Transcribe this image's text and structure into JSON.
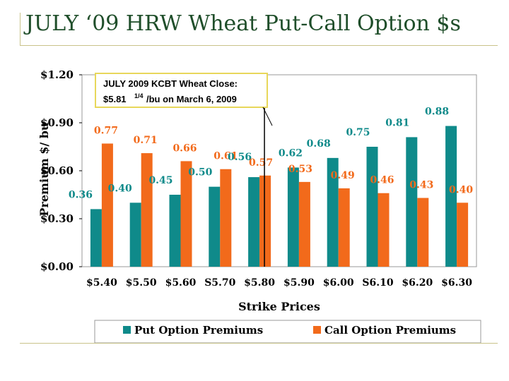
{
  "slide": {
    "title": "JULY ‘09 HRW Wheat Put-Call Option $s"
  },
  "annotation": {
    "line1": "JULY 2009 KCBT Wheat Close:",
    "line2_pre": "$5.81",
    "line2_sup": "1/4",
    "line2_post": "/bu on March 6, 2009"
  },
  "colors": {
    "put": "#0f8a8a",
    "call": "#f26a1b",
    "annotation_border": "#e8d75a"
  },
  "chart_data": {
    "type": "bar",
    "title": "",
    "xlabel": "Strike Prices",
    "ylabel": "Premium $/ bu",
    "ylim": [
      0,
      1.2
    ],
    "yticks": [
      0,
      0.3,
      0.6,
      0.9,
      1.2
    ],
    "ytick_labels": [
      "$0.00",
      "$0.30",
      "$0.60",
      "$0.90",
      "$1.20"
    ],
    "categories": [
      "$5.40",
      "$5.50",
      "$5.60",
      "S5.70",
      "$5.80",
      "$5.90",
      "$6.00",
      "S6.10",
      "$6.20",
      "$6.30"
    ],
    "series": [
      {
        "name": "Put Option Premiums",
        "values": [
          0.36,
          0.4,
          0.45,
          0.5,
          0.56,
          0.62,
          0.68,
          0.75,
          0.81,
          0.88
        ],
        "labels": [
          "0.36",
          "0.40",
          "0.45",
          "0.50",
          "0.56",
          "0.62",
          "0.68",
          "0.75",
          "0.81",
          "0.88"
        ]
      },
      {
        "name": "Call Option Premiums",
        "values": [
          0.77,
          0.71,
          0.66,
          0.61,
          0.57,
          0.53,
          0.49,
          0.46,
          0.43,
          0.4
        ],
        "labels": [
          "0.77",
          "0.71",
          "0.66",
          "0.61",
          "0.57",
          "0.53",
          "0.49",
          "0.46",
          "0.43",
          "0.40"
        ]
      }
    ],
    "reference_line_x": 5.8125,
    "legend_position": "bottom",
    "grid": false
  }
}
